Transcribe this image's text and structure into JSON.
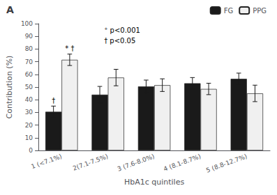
{
  "chart_data": {
    "type": "bar",
    "title": "A",
    "categories": [
      "1 (<7.1%)",
      "2(7.1-7.5%)",
      "3 (7.6-8.0%)",
      "4 (8.1-8.7%)",
      "5 (8.8-12.7%)"
    ],
    "series": [
      {
        "name": "FG",
        "color": "#1a1a1a",
        "values": [
          30.5,
          44.0,
          50.5,
          53.0,
          56.5
        ],
        "errors": [
          4.5,
          6.5,
          5.0,
          4.5,
          4.5
        ]
      },
      {
        "name": "PPG",
        "color": "#f0f0f0",
        "values": [
          71.5,
          57.5,
          51.5,
          48.5,
          45.0
        ],
        "errors": [
          4.5,
          6.5,
          5.0,
          4.5,
          6.5
        ]
      }
    ],
    "xlabel": "HbA1c quintiles",
    "ylabel": "Contribution (%)",
    "ylim": [
      0,
      100
    ],
    "yticks": [
      0,
      10,
      20,
      30,
      40,
      50,
      60,
      70,
      80,
      90,
      100
    ],
    "grid": false,
    "legend": "upper right",
    "annotations": [
      {
        "text": "†",
        "category": "1 (<7.1%)",
        "series": "FG"
      },
      {
        "text": "* †",
        "category": "1 (<7.1%)",
        "series": "PPG"
      },
      {
        "text": "⁺ p<0.001\n† p<0.05"
      }
    ]
  }
}
